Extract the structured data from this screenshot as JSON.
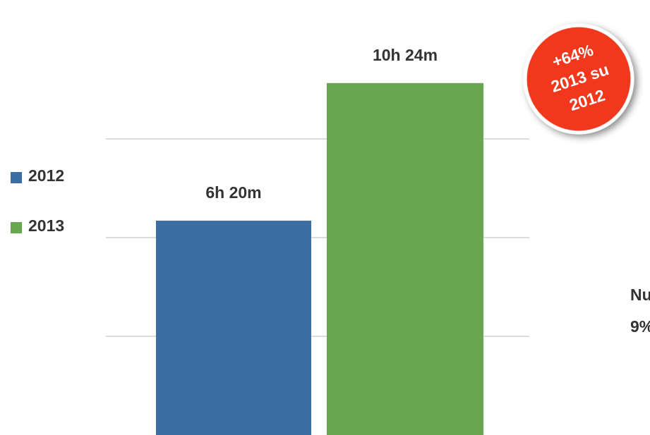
{
  "chart_data": {
    "type": "bar",
    "categories": [
      "2012",
      "2013"
    ],
    "values": [
      380,
      624
    ],
    "value_labels": [
      "6h 20m",
      "10h 24m"
    ],
    "colors": [
      "#3b6ea3",
      "#68a650"
    ],
    "ylim": [
      0,
      700
    ],
    "yticks": [
      175,
      350,
      525
    ],
    "grid": true,
    "legend": "left",
    "badge": [
      "+64%",
      "2013 su",
      "2012"
    ],
    "badge_color": "#f2391c",
    "side_text": [
      "Nu",
      "9%"
    ]
  }
}
